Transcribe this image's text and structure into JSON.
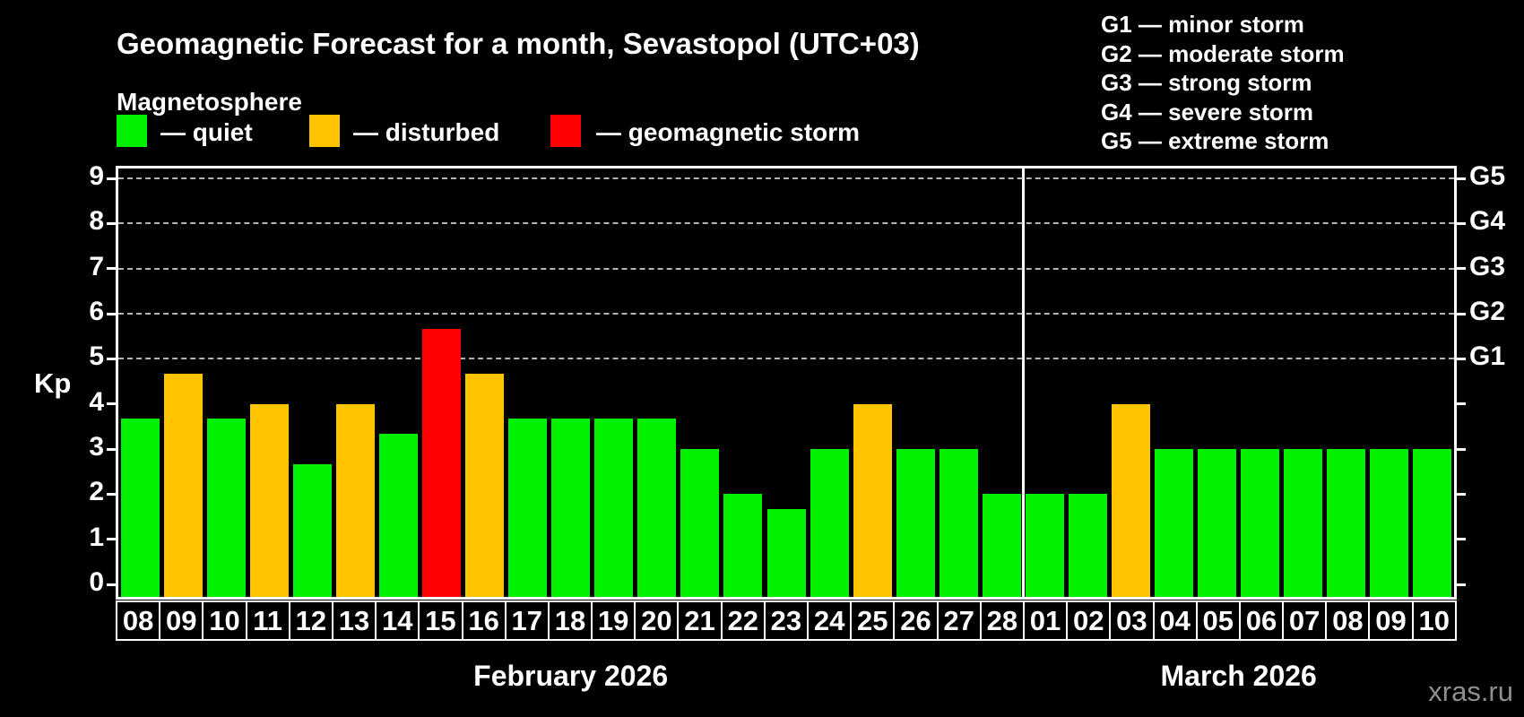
{
  "title": "Geomagnetic Forecast for a month, Sevastopol (UTC+03)",
  "subtitle": "Magnetosphere",
  "legend": {
    "quiet_label": "— quiet",
    "disturbed_label": "— disturbed",
    "storm_label": "— geomagnetic storm",
    "quiet_color": "#00f000",
    "disturbed_color": "#ffc300",
    "storm_color": "#ff0000"
  },
  "storm_scale_lines": [
    "G1 — minor storm",
    "G2 — moderate storm",
    "G3 — strong storm",
    "G4 — severe storm",
    "G5 — extreme storm"
  ],
  "watermark": "xras.ru",
  "chart_data": {
    "type": "bar",
    "title": "Geomagnetic Forecast for a month, Sevastopol (UTC+03)",
    "ylabel": "Kp",
    "ylim": [
      0,
      9
    ],
    "y_ticks": [
      0,
      1,
      2,
      3,
      4,
      5,
      6,
      7,
      8,
      9
    ],
    "gridlines_at": [
      5,
      6,
      7,
      8,
      9
    ],
    "grid": "dashed horizontal at storm levels only",
    "right_axis": [
      {
        "label": "G1",
        "kp": 5
      },
      {
        "label": "G2",
        "kp": 6
      },
      {
        "label": "G3",
        "kp": 7
      },
      {
        "label": "G4",
        "kp": 8
      },
      {
        "label": "G5",
        "kp": 9
      }
    ],
    "months": [
      {
        "label": "February 2026",
        "days": 21
      },
      {
        "label": "March 2026",
        "days": 10
      }
    ],
    "bars": [
      {
        "day": "08",
        "value": 3.67,
        "status": "quiet"
      },
      {
        "day": "09",
        "value": 4.67,
        "status": "disturbed"
      },
      {
        "day": "10",
        "value": 3.67,
        "status": "quiet"
      },
      {
        "day": "11",
        "value": 4.0,
        "status": "disturbed"
      },
      {
        "day": "12",
        "value": 2.67,
        "status": "quiet"
      },
      {
        "day": "13",
        "value": 4.0,
        "status": "disturbed"
      },
      {
        "day": "14",
        "value": 3.33,
        "status": "quiet"
      },
      {
        "day": "15",
        "value": 5.67,
        "status": "storm"
      },
      {
        "day": "16",
        "value": 4.67,
        "status": "disturbed"
      },
      {
        "day": "17",
        "value": 3.67,
        "status": "quiet"
      },
      {
        "day": "18",
        "value": 3.67,
        "status": "quiet"
      },
      {
        "day": "19",
        "value": 3.67,
        "status": "quiet"
      },
      {
        "day": "20",
        "value": 3.67,
        "status": "quiet"
      },
      {
        "day": "21",
        "value": 3.0,
        "status": "quiet"
      },
      {
        "day": "22",
        "value": 2.0,
        "status": "quiet"
      },
      {
        "day": "23",
        "value": 1.67,
        "status": "quiet"
      },
      {
        "day": "24",
        "value": 3.0,
        "status": "quiet"
      },
      {
        "day": "25",
        "value": 4.0,
        "status": "disturbed"
      },
      {
        "day": "26",
        "value": 3.0,
        "status": "quiet"
      },
      {
        "day": "27",
        "value": 3.0,
        "status": "quiet"
      },
      {
        "day": "28",
        "value": 2.0,
        "status": "quiet"
      },
      {
        "day": "01",
        "value": 2.0,
        "status": "quiet"
      },
      {
        "day": "02",
        "value": 2.0,
        "status": "quiet"
      },
      {
        "day": "03",
        "value": 4.0,
        "status": "disturbed"
      },
      {
        "day": "04",
        "value": 3.0,
        "status": "quiet"
      },
      {
        "day": "05",
        "value": 3.0,
        "status": "quiet"
      },
      {
        "day": "06",
        "value": 3.0,
        "status": "quiet"
      },
      {
        "day": "07",
        "value": 3.0,
        "status": "quiet"
      },
      {
        "day": "08",
        "value": 3.0,
        "status": "quiet"
      },
      {
        "day": "09",
        "value": 3.0,
        "status": "quiet"
      },
      {
        "day": "10",
        "value": 3.0,
        "status": "quiet"
      }
    ]
  }
}
